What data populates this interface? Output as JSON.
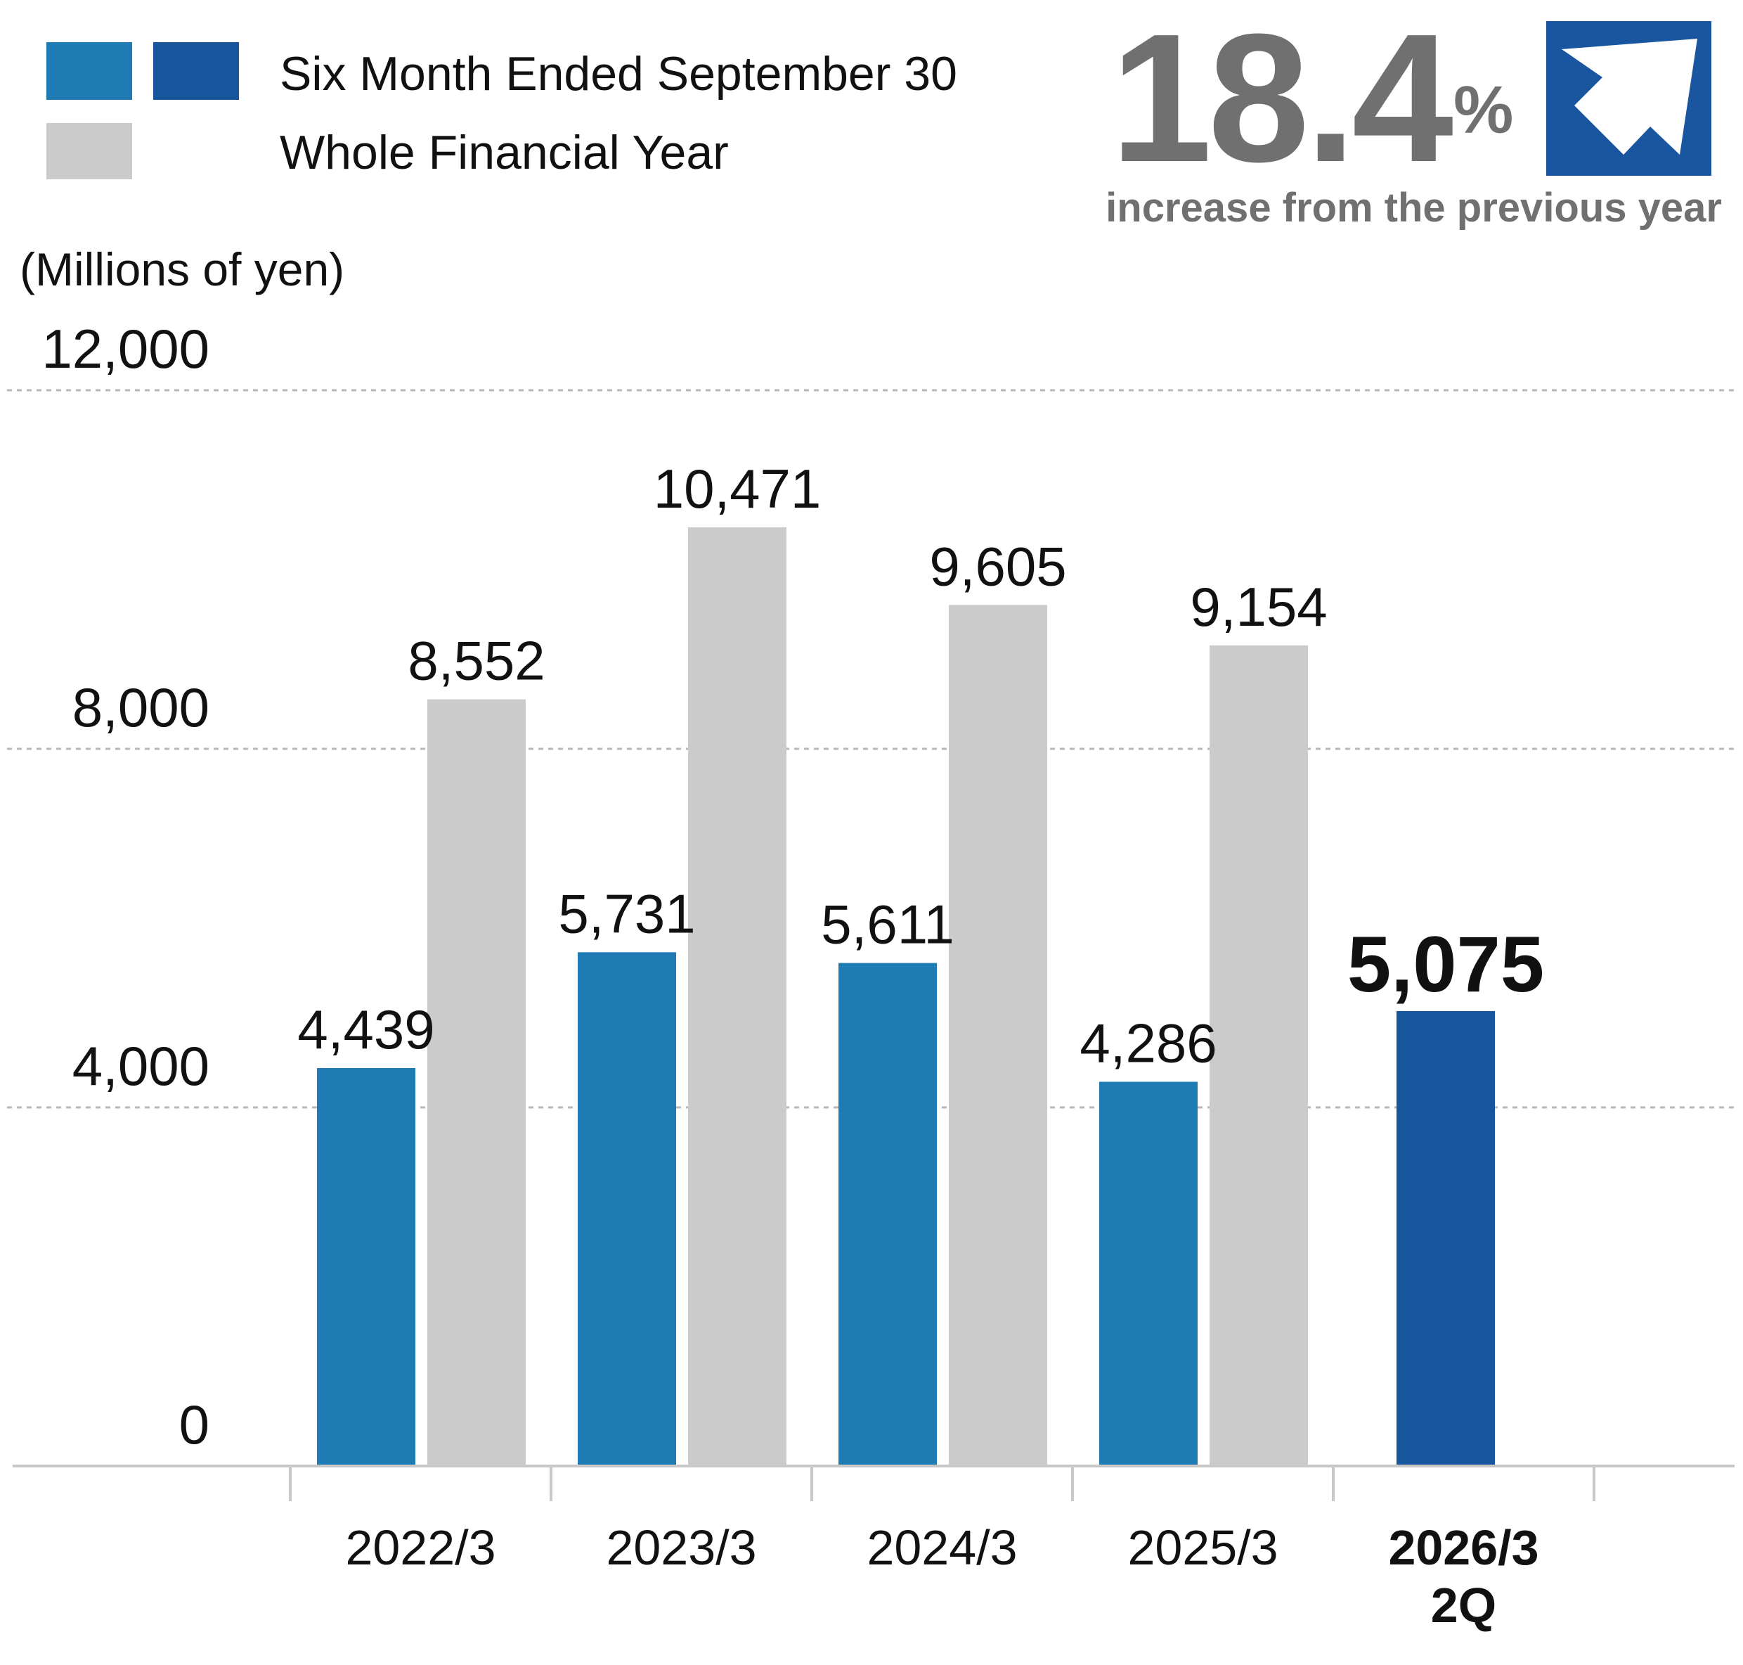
{
  "legend": {
    "series1_label": "Six Month Ended September 30",
    "series2_label": "Whole Financial Year"
  },
  "headline": {
    "value": "18.4",
    "unit": "%",
    "caption": "increase from the previous year"
  },
  "colors": {
    "half_year": "#1f7bb3",
    "half_year_current": "#17559c",
    "full_year": "#cbcbcb",
    "grid": "#b8b8b8",
    "axis": "#c8c8c8",
    "headline_text": "#707070",
    "arrow_box": "#1a56a0"
  },
  "chart_data": {
    "type": "bar",
    "title": "",
    "ylabel": "(Millions of yen)",
    "xlabel": "",
    "ylim": [
      0,
      12000
    ],
    "yticks": [
      0,
      4000,
      8000,
      12000
    ],
    "ytick_labels": [
      "0",
      "4,000",
      "8,000",
      "12,000"
    ],
    "grid": true,
    "categories": [
      "2022/3",
      "2023/3",
      "2024/3",
      "2025/3",
      "2026/3\n2Q"
    ],
    "series": [
      {
        "name": "Six Month Ended September 30",
        "values": [
          4439,
          5731,
          5611,
          4286,
          5075
        ],
        "labels": [
          "4,439",
          "5,731",
          "5,611",
          "4,286",
          "5,075"
        ]
      },
      {
        "name": "Whole Financial Year",
        "values": [
          8552,
          10471,
          9605,
          9154,
          null
        ],
        "labels": [
          "8,552",
          "10,471",
          "9,605",
          "9,154",
          ""
        ]
      }
    ],
    "highlight_category": "2026/3\n2Q"
  }
}
